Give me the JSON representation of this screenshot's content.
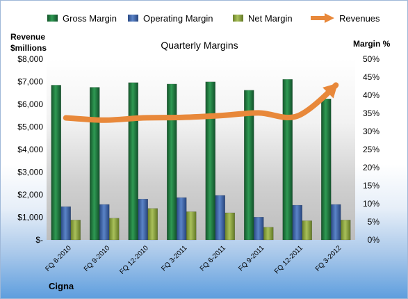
{
  "chart_data": {
    "type": "bar",
    "title": "Quarterly Margins",
    "company": "Cigna",
    "ylabel_left": [
      "Revenue",
      "$millions"
    ],
    "ylabel_right": "Margin %",
    "categories": [
      "FQ 6-2010",
      "FQ 9-2010",
      "FQ 12-2010",
      "FQ 3-2011",
      "FQ 6-2011",
      "FQ 9-2011",
      "FQ 12-2011",
      "FQ 3-2012"
    ],
    "ylim_left": [
      0,
      8000
    ],
    "ylim_right": [
      0,
      50
    ],
    "yticks_left": [
      "$-",
      "$1,000",
      "$2,000",
      "$3,000",
      "$4,000",
      "$5,000",
      "$6,000",
      "$7,000",
      "$8,000"
    ],
    "yticks_right": [
      "0%",
      "5%",
      "10%",
      "15%",
      "20%",
      "25%",
      "30%",
      "35%",
      "40%",
      "45%",
      "50%"
    ],
    "series": [
      {
        "name": "Gross Margin",
        "axis": "right",
        "type": "bar",
        "color": "#1e7a3c",
        "values": [
          42.8,
          42.2,
          43.5,
          43.1,
          43.7,
          41.4,
          44.4,
          39.0
        ]
      },
      {
        "name": "Operating Margin",
        "axis": "right",
        "type": "bar",
        "color": "#3a62a8",
        "values": [
          9.2,
          9.8,
          11.3,
          11.7,
          12.3,
          6.3,
          9.6,
          9.8
        ]
      },
      {
        "name": "Net Margin",
        "axis": "right",
        "type": "bar",
        "color": "#8aa33c",
        "values": [
          5.5,
          6.0,
          8.7,
          7.8,
          7.5,
          3.5,
          5.3,
          5.5
        ]
      },
      {
        "name": "Revenues",
        "axis": "left",
        "type": "line",
        "color": "#e8883a",
        "values": [
          5400,
          5300,
          5400,
          5420,
          5500,
          5620,
          5480,
          6850
        ]
      }
    ],
    "legend_position": "top",
    "grid": false
  }
}
